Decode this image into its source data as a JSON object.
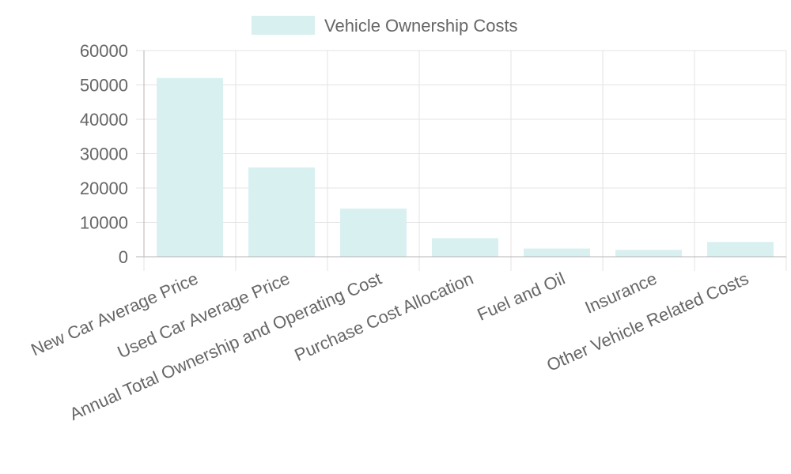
{
  "chart_data": {
    "type": "bar",
    "categories": [
      "New Car Average Price",
      "Used Car Average Price",
      "Annual Total Ownership and Operating Cost",
      "Purchase Cost Allocation",
      "Fuel and Oil",
      "Insurance",
      "Other Vehicle Related Costs"
    ],
    "series": [
      {
        "name": "Vehicle Ownership Costs",
        "values": [
          52000,
          26000,
          14000,
          5400,
          2400,
          2000,
          4300
        ],
        "color": "#d9f0f1"
      }
    ],
    "ylim": [
      0,
      60000
    ],
    "yticks": [
      0,
      10000,
      20000,
      30000,
      40000,
      50000,
      60000
    ],
    "grid": true,
    "legend": "top-center"
  }
}
